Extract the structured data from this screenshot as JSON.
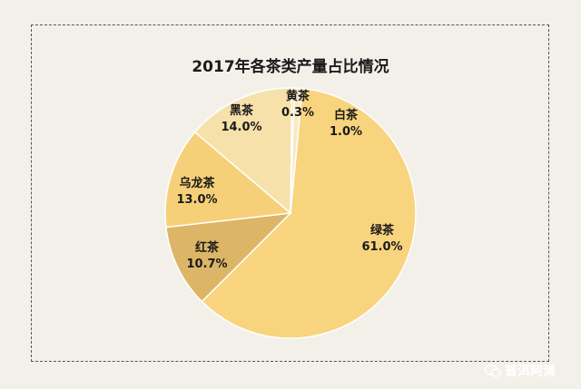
{
  "watermark": "普洱阿清",
  "chart_data": {
    "type": "pie",
    "title": "2017年各茶类产量占比情况",
    "slices": [
      {
        "name": "绿茶",
        "value": 61.0,
        "label": "61.0%",
        "color": "#f8d47e"
      },
      {
        "name": "红茶",
        "value": 10.7,
        "label": "10.7%",
        "color": "#dcb666"
      },
      {
        "name": "乌龙茶",
        "value": 13.0,
        "label": "13.0%",
        "color": "#f6d078"
      },
      {
        "name": "黑茶",
        "value": 14.0,
        "label": "14.0%",
        "color": "#f7e1aa"
      },
      {
        "name": "黄茶",
        "value": 0.3,
        "label": "0.3%",
        "color": "#f4d58e"
      },
      {
        "name": "白茶",
        "value": 1.0,
        "label": "1.0%",
        "color": "#f9e9c4"
      }
    ]
  }
}
